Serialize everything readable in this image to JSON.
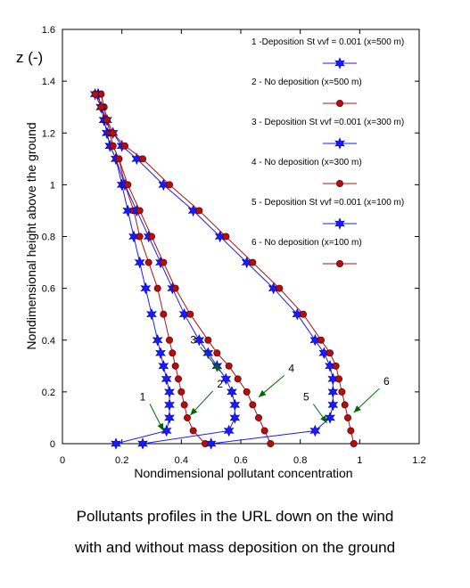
{
  "chart_data": {
    "type": "line",
    "xlabel": "Nondimensional pollutant concentration",
    "ylabel": "Nondimensional height above the ground",
    "zlabel": "z (-)",
    "xlim": [
      0,
      1.2
    ],
    "ylim": [
      0,
      1.6
    ],
    "xticks": [
      "0",
      "0.2",
      "0.4",
      "0.6",
      "0.8",
      "1",
      "1.2"
    ],
    "yticks": [
      "0",
      "0.2",
      "0.4",
      "0.6",
      "0.8",
      "1",
      "1.2",
      "1.4",
      "1.6"
    ],
    "legend_position": "top-right",
    "series": [
      {
        "name": "1 -Deposition  St vvf = 0.001 (x=500 m)",
        "marker": "star",
        "color": "#1a1aff",
        "x": [
          0.18,
          0.35,
          0.36,
          0.36,
          0.36,
          0.35,
          0.34,
          0.33,
          0.32,
          0.3,
          0.28,
          0.26,
          0.24,
          0.22,
          0.2,
          0.18,
          0.16,
          0.15,
          0.14,
          0.13,
          0.12
        ],
        "y": [
          0.0,
          0.05,
          0.1,
          0.15,
          0.2,
          0.25,
          0.3,
          0.35,
          0.4,
          0.5,
          0.6,
          0.7,
          0.8,
          0.9,
          1.0,
          1.1,
          1.15,
          1.2,
          1.25,
          1.3,
          1.35
        ]
      },
      {
        "name": "2 -  No deposition (x=500 m)",
        "marker": "circle",
        "color": "#b01010",
        "x": [
          0.48,
          0.44,
          0.42,
          0.41,
          0.4,
          0.39,
          0.38,
          0.37,
          0.36,
          0.34,
          0.32,
          0.29,
          0.26,
          0.24,
          0.21,
          0.19,
          0.17,
          0.16,
          0.15,
          0.14,
          0.13
        ],
        "y": [
          0.0,
          0.05,
          0.1,
          0.15,
          0.2,
          0.25,
          0.3,
          0.35,
          0.4,
          0.5,
          0.6,
          0.7,
          0.8,
          0.9,
          1.0,
          1.1,
          1.15,
          1.2,
          1.25,
          1.3,
          1.35
        ]
      },
      {
        "name": "3 -  Deposition St vvf =0.001 (x=300 m)",
        "marker": "star",
        "color": "#1a1aff",
        "x": [
          0.27,
          0.56,
          0.58,
          0.58,
          0.57,
          0.55,
          0.52,
          0.49,
          0.46,
          0.41,
          0.37,
          0.33,
          0.29,
          0.25,
          0.21,
          0.18,
          0.16,
          0.15,
          0.14,
          0.13,
          0.12
        ],
        "y": [
          0.0,
          0.05,
          0.1,
          0.15,
          0.2,
          0.25,
          0.3,
          0.35,
          0.4,
          0.5,
          0.6,
          0.7,
          0.8,
          0.9,
          1.0,
          1.1,
          1.15,
          1.2,
          1.25,
          1.3,
          1.35
        ]
      },
      {
        "name": "4 -  No deposition (x=300 m)",
        "marker": "circle",
        "color": "#b01010",
        "x": [
          0.7,
          0.68,
          0.66,
          0.64,
          0.62,
          0.59,
          0.56,
          0.52,
          0.49,
          0.43,
          0.38,
          0.34,
          0.3,
          0.26,
          0.22,
          0.19,
          0.17,
          0.16,
          0.15,
          0.14,
          0.13
        ],
        "y": [
          0.0,
          0.05,
          0.1,
          0.15,
          0.2,
          0.25,
          0.3,
          0.35,
          0.4,
          0.5,
          0.6,
          0.7,
          0.8,
          0.9,
          1.0,
          1.1,
          1.15,
          1.2,
          1.25,
          1.3,
          1.35
        ]
      },
      {
        "name": "5 - Deposition St vvf =0.001 (x=100 m)",
        "marker": "star",
        "color": "#1a1aff",
        "x": [
          0.5,
          0.85,
          0.9,
          0.91,
          0.91,
          0.91,
          0.9,
          0.88,
          0.85,
          0.79,
          0.71,
          0.62,
          0.53,
          0.44,
          0.34,
          0.25,
          0.2,
          0.17,
          0.15,
          0.13,
          0.11
        ],
        "y": [
          0.0,
          0.05,
          0.1,
          0.15,
          0.2,
          0.25,
          0.3,
          0.35,
          0.4,
          0.5,
          0.6,
          0.7,
          0.8,
          0.9,
          1.0,
          1.1,
          1.15,
          1.2,
          1.25,
          1.3,
          1.35
        ]
      },
      {
        "name": "6 -  No deposition (x=100 m)",
        "marker": "circle",
        "color": "#b01010",
        "x": [
          0.98,
          0.97,
          0.96,
          0.95,
          0.94,
          0.93,
          0.92,
          0.9,
          0.87,
          0.81,
          0.73,
          0.64,
          0.55,
          0.46,
          0.36,
          0.27,
          0.21,
          0.17,
          0.15,
          0.13,
          0.11
        ],
        "y": [
          0.0,
          0.05,
          0.1,
          0.15,
          0.2,
          0.25,
          0.3,
          0.35,
          0.4,
          0.5,
          0.6,
          0.7,
          0.8,
          0.9,
          1.0,
          1.1,
          1.15,
          1.2,
          1.25,
          1.3,
          1.35
        ]
      }
    ],
    "annotations": [
      {
        "label": "1",
        "text_x": 0.27,
        "text_y": 0.16,
        "tip_x": 0.34,
        "tip_y": 0.05
      },
      {
        "label": "2",
        "text_x": 0.53,
        "text_y": 0.21,
        "tip_x": 0.43,
        "tip_y": 0.11
      },
      {
        "label": "3",
        "text_x": 0.44,
        "text_y": 0.38,
        "tip_x": 0.53,
        "tip_y": 0.28
      },
      {
        "label": "4",
        "text_x": 0.77,
        "text_y": 0.27,
        "tip_x": 0.66,
        "tip_y": 0.18
      },
      {
        "label": "5",
        "text_x": 0.82,
        "text_y": 0.16,
        "tip_x": 0.89,
        "tip_y": 0.08
      },
      {
        "label": "6",
        "text_x": 1.09,
        "text_y": 0.22,
        "tip_x": 0.98,
        "tip_y": 0.12
      }
    ]
  },
  "caption": {
    "line1": "Pollutants profiles in the URL down on the wind",
    "line2": "with and without mass deposition on the ground"
  }
}
